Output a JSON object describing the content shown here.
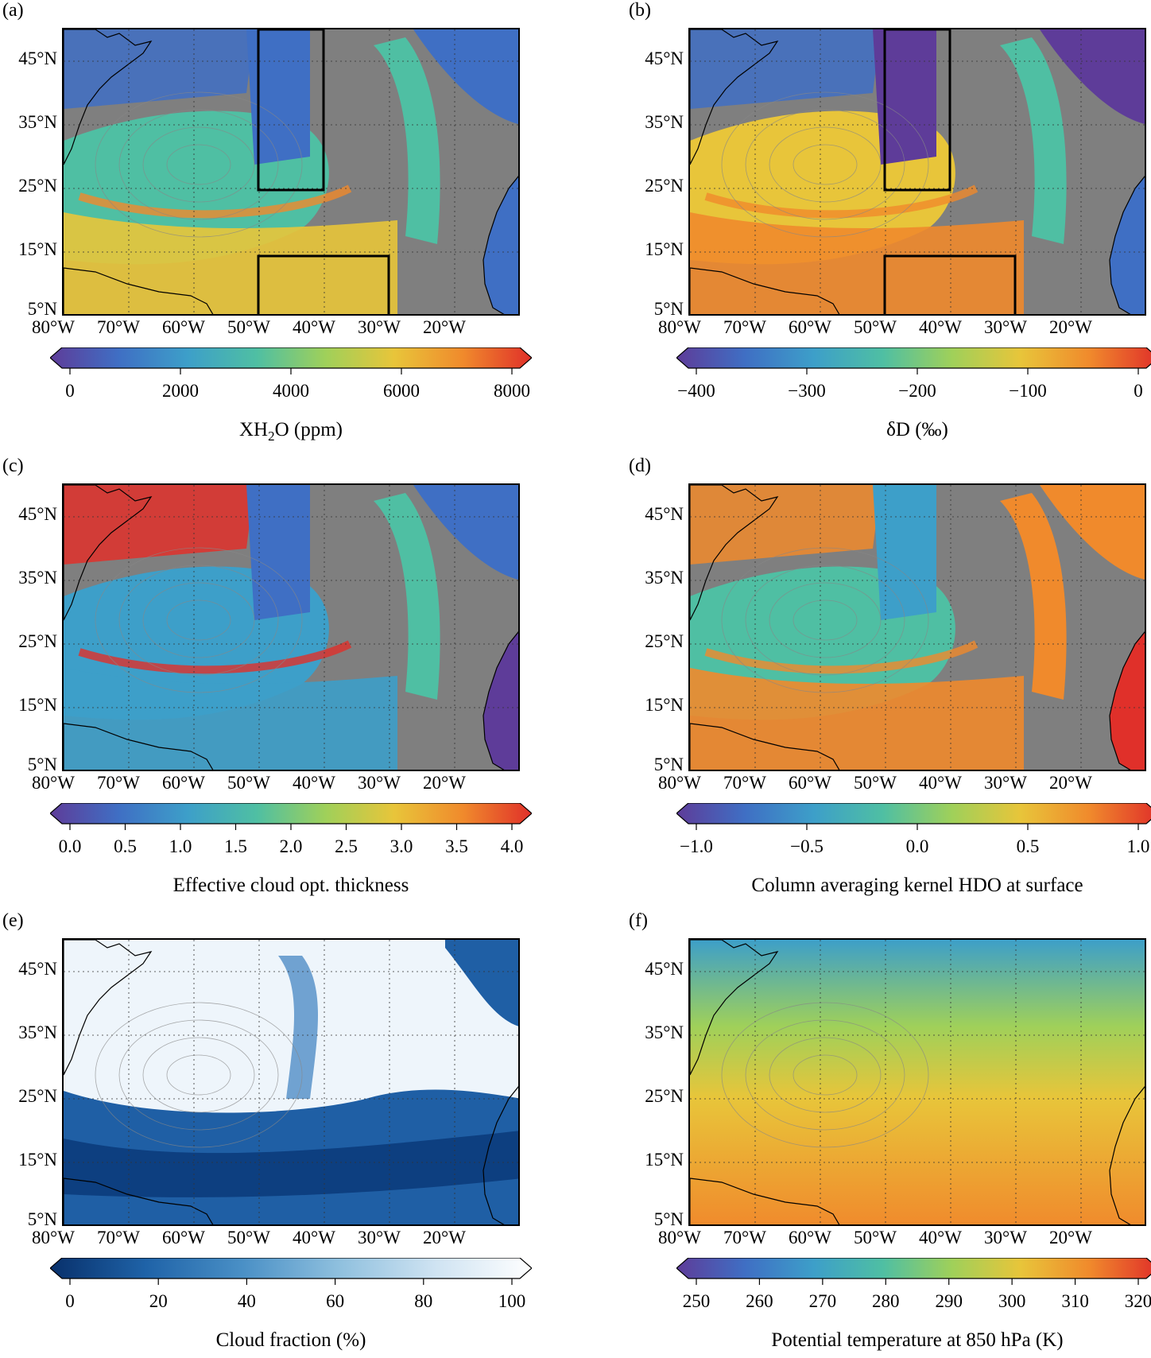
{
  "lat_labels": [
    "45°N",
    "35°N",
    "25°N",
    "15°N",
    "5°N"
  ],
  "lon_labels": [
    "80°W",
    "70°W",
    "60°W",
    "50°W",
    "40°W",
    "30°W",
    "20°W"
  ],
  "panels": [
    {
      "label": "(a)",
      "colorbar_label_parts": [
        "XH",
        "2",
        "O (ppm)"
      ],
      "ticks": [
        "0",
        "2000",
        "4000",
        "6000",
        "8000"
      ],
      "colormap": "spectral",
      "has_boxes": true
    },
    {
      "label": "(b)",
      "colorbar_label": "δD (‰)",
      "ticks": [
        "−400",
        "−300",
        "−200",
        "−100",
        "0"
      ],
      "colormap": "spectral",
      "has_boxes": true
    },
    {
      "label": "(c)",
      "colorbar_label": "Effective cloud opt. thickness",
      "ticks": [
        "0.0",
        "0.5",
        "1.0",
        "1.5",
        "2.0",
        "2.5",
        "3.0",
        "3.5",
        "4.0"
      ],
      "colormap": "spectral",
      "has_boxes": false
    },
    {
      "label": "(d)",
      "colorbar_label": "Column averaging kernel HDO at surface",
      "ticks": [
        "−1.0",
        "−0.5",
        "0.0",
        "0.5",
        "1.0"
      ],
      "colormap": "spectral",
      "has_boxes": false
    },
    {
      "label": "(e)",
      "colorbar_label": "Cloud fraction (%)",
      "ticks": [
        "0",
        "20",
        "40",
        "60",
        "80",
        "100"
      ],
      "colormap": "blues",
      "has_boxes": false
    },
    {
      "label": "(f)",
      "colorbar_label": "Potential temperature at 850 hPa (K)",
      "ticks": [
        "250",
        "260",
        "270",
        "280",
        "290",
        "300",
        "310",
        "320"
      ],
      "colormap": "spectral",
      "has_boxes": false
    }
  ],
  "colors": {
    "missing_data": "#7f7f7f",
    "spectral": [
      "#5e3c99",
      "#3f6fc4",
      "#3d9fc9",
      "#4fbfa3",
      "#9fd05a",
      "#e8c53a",
      "#f08a2c",
      "#e0302a"
    ],
    "blues": [
      "#08306b",
      "#1f63a8",
      "#4a90c6",
      "#8fc0de",
      "#cfe3f2",
      "#ffffff"
    ]
  }
}
